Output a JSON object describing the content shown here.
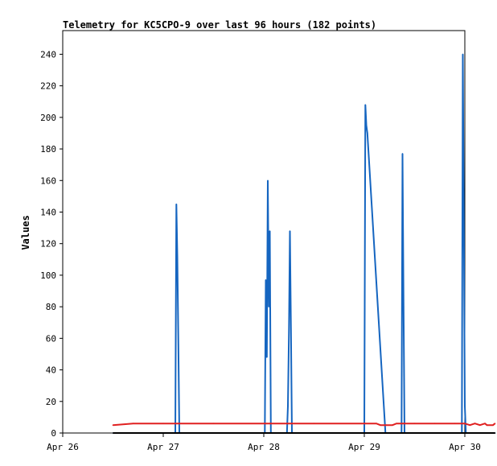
{
  "chart_data": {
    "type": "line",
    "title": "Telemetry for KC5CPO-9 over last 96 hours (182 points)",
    "xlabel": "",
    "ylabel": "Values",
    "x_ticks": [
      "Apr 26",
      "Apr 27",
      "Apr 28",
      "Apr 29",
      "Apr 30"
    ],
    "y_ticks": [
      0,
      20,
      40,
      60,
      80,
      100,
      120,
      140,
      160,
      180,
      200,
      220,
      240
    ],
    "xlim": [
      "Apr 26",
      "Apr 30"
    ],
    "ylim": [
      0,
      255
    ],
    "grid": false,
    "legend": "none",
    "series": [
      {
        "color": "#1565c0",
        "x_days": [
          0.0,
          0.56,
          0.62,
          0.63,
          0.64,
          0.65,
          0.66,
          1.4,
          1.51,
          1.52,
          1.53,
          1.54,
          1.55,
          1.56,
          1.57,
          1.58,
          1.59,
          1.6,
          1.61,
          1.7,
          1.73,
          1.74,
          1.75,
          1.76,
          1.77,
          1.78,
          1.79,
          1.8,
          1.81,
          1.82,
          2.3,
          2.5,
          2.51,
          2.52,
          2.53,
          2.71,
          2.72,
          2.73,
          2.8,
          2.87,
          2.88,
          2.89,
          2.9,
          2.91,
          3.0,
          3.35,
          3.47,
          3.48,
          3.49,
          3.5,
          3.51,
          3.52,
          3.53,
          3.54,
          3.8
        ],
        "values": [
          0,
          0,
          0,
          145,
          112,
          56,
          0,
          0,
          0,
          97,
          48,
          160,
          80,
          128,
          0,
          0,
          0,
          0,
          0,
          0,
          0,
          17,
          64,
          128,
          65,
          0,
          0,
          0,
          0,
          0,
          0,
          0,
          208,
          195,
          190,
          0,
          0,
          0,
          0,
          0,
          177,
          80,
          0,
          0,
          0,
          0,
          0,
          240,
          128,
          17,
          0,
          0,
          0,
          0,
          0
        ]
      },
      {
        "color": "#e02020",
        "x_days": [
          0.0,
          0.2,
          0.5,
          1.0,
          1.5,
          2.0,
          2.5,
          2.62,
          2.66,
          2.72,
          2.78,
          2.82,
          2.88,
          3.0,
          3.2,
          3.4,
          3.5,
          3.55,
          3.6,
          3.65,
          3.7,
          3.72,
          3.75,
          3.78,
          3.8
        ],
        "values": [
          5,
          6,
          6,
          6,
          6,
          6,
          6,
          6,
          5,
          5,
          5,
          6,
          6,
          6,
          6,
          6,
          6,
          5,
          6,
          5,
          6,
          5,
          5,
          5,
          6
        ]
      },
      {
        "color": "#000000",
        "x_days": [
          0.0,
          3.8
        ],
        "values": [
          0,
          0
        ]
      }
    ]
  }
}
